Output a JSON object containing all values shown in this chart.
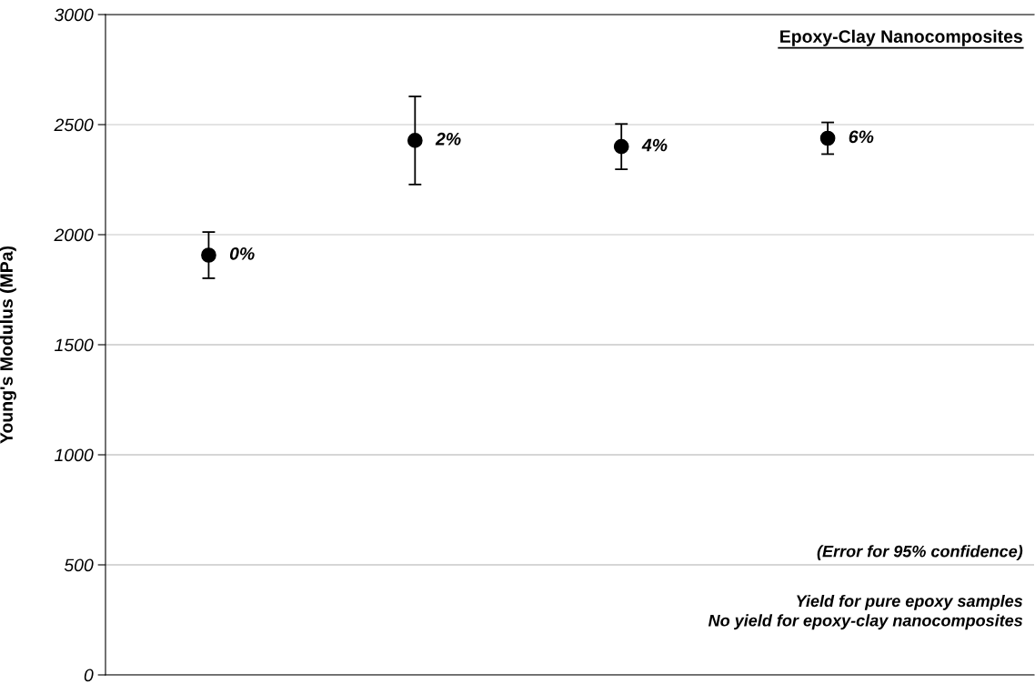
{
  "chart_data": {
    "type": "scatter",
    "title": "Epoxy-Clay Nanocomposites",
    "ylabel": "Young's Modulus (MPa)",
    "categories": [
      "0%",
      "2%",
      "4%",
      "6%"
    ],
    "series": [
      {
        "color": "#000000",
        "values": [
          1907,
          2428,
          2400,
          2438
        ],
        "errors": [
          105,
          200,
          103,
          72
        ]
      }
    ],
    "ylim": [
      0,
      3000
    ],
    "yticks": [
      0,
      500,
      1000,
      1500,
      2000,
      2500,
      3000
    ],
    "grid": "y",
    "marker": "circle",
    "tick_labels": "y",
    "annotations": [
      "(Error for 95% confidence)",
      "Yield for pure epoxy samples\nNo yield for epoxy-clay nanocomposites"
    ]
  }
}
